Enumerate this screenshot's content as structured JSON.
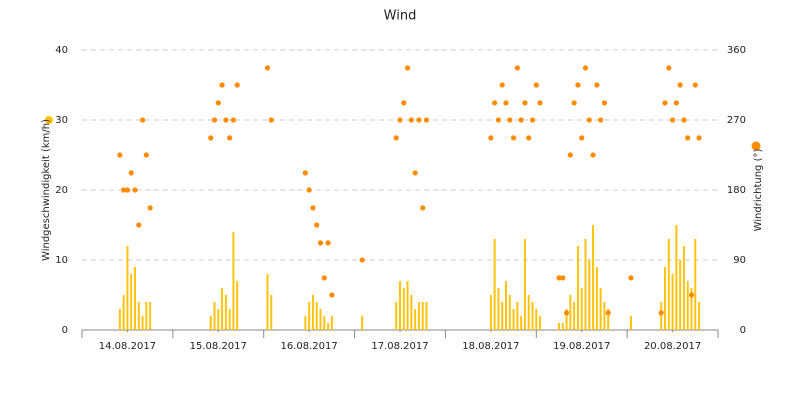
{
  "chart_data": {
    "type": "bar-scatter",
    "title": "Wind",
    "x": [
      10,
      11,
      12,
      13,
      14,
      15,
      16,
      17,
      18,
      34,
      35,
      36,
      37,
      38,
      39,
      40,
      41,
      49,
      50,
      59,
      60,
      61,
      62,
      63,
      64,
      65,
      66,
      74,
      83,
      84,
      85,
      86,
      87,
      88,
      89,
      90,
      91,
      108,
      109,
      110,
      111,
      112,
      113,
      114,
      115,
      116,
      117,
      118,
      119,
      120,
      121,
      126,
      127,
      128,
      129,
      130,
      131,
      132,
      133,
      134,
      135,
      136,
      137,
      138,
      139,
      145,
      153,
      154,
      155,
      156,
      157,
      158,
      159,
      160,
      161,
      162,
      163
    ],
    "xlim": [
      0,
      168
    ],
    "xticks": [
      {
        "value": 12,
        "label": "14.08.2017"
      },
      {
        "value": 36,
        "label": "15.08.2017"
      },
      {
        "value": 60,
        "label": "16.08.2017"
      },
      {
        "value": 84,
        "label": "17.08.2017"
      },
      {
        "value": 108,
        "label": "18.08.2017"
      },
      {
        "value": 132,
        "label": "19.08.2017"
      },
      {
        "value": 156,
        "label": "20.08.2017"
      }
    ],
    "ylim": [
      0,
      40
    ],
    "yticks": [
      0,
      10,
      20,
      30,
      40
    ],
    "y2lim": [
      0,
      360
    ],
    "y2ticks": [
      0,
      90,
      180,
      270,
      360
    ],
    "grid": true,
    "series": [
      {
        "name": "Windgeschwindigkeit (km/h)",
        "color": "#ffc20e",
        "kind": "bar",
        "values": [
          3,
          5,
          12,
          8,
          9,
          4,
          2,
          4,
          4,
          2,
          4,
          3,
          6,
          5,
          3,
          14,
          7,
          8,
          5,
          2,
          4,
          5,
          4,
          3,
          2,
          1,
          2,
          2,
          4,
          7,
          6,
          7,
          5,
          3,
          4,
          4,
          4,
          5,
          13,
          6,
          4,
          7,
          5,
          3,
          4,
          2,
          13,
          5,
          4,
          3,
          2,
          1,
          1,
          3,
          5,
          4,
          12,
          6,
          13,
          10,
          15,
          9,
          6,
          4,
          3,
          2,
          4,
          9,
          13,
          8,
          15,
          10,
          12,
          7,
          6,
          13,
          4
        ]
      },
      {
        "name": "Windrichtung (°)",
        "color": "#ff8c00",
        "kind": "scatter",
        "axis": "y2",
        "values": [
          225,
          180,
          180,
          202,
          180,
          135,
          270,
          225,
          157,
          247,
          270,
          292,
          315,
          270,
          247,
          270,
          315,
          337,
          270,
          202,
          180,
          157,
          135,
          112,
          67,
          112,
          45,
          90,
          247,
          270,
          292,
          337,
          270,
          202,
          270,
          157,
          270,
          247,
          292,
          270,
          315,
          292,
          270,
          247,
          337,
          270,
          292,
          247,
          270,
          315,
          292,
          67,
          67,
          22,
          225,
          292,
          315,
          247,
          337,
          270,
          225,
          315,
          270,
          292,
          22,
          67,
          22,
          292,
          337,
          270,
          292,
          315,
          270,
          247,
          45,
          315,
          247
        ]
      }
    ]
  }
}
